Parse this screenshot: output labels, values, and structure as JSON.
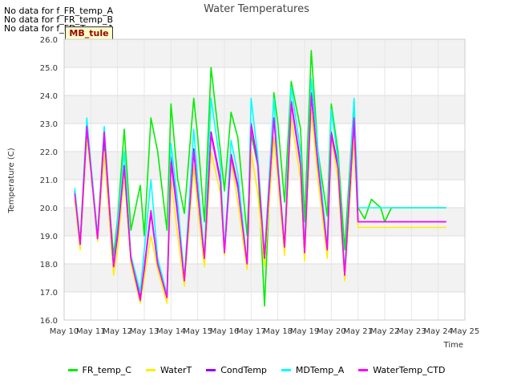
{
  "no_data_messages": [
    "No data for f_FR_temp_A",
    "No data for f_FR_temp_B",
    "No data for f_FD_Temp_1"
  ],
  "badge_label": "MB_tule",
  "chart_data": {
    "type": "line",
    "title": "Water Temperatures",
    "xlabel": "Time",
    "ylabel": "Temperature (C)",
    "ylim": [
      16.0,
      26.0
    ],
    "xlim": [
      "May 10",
      "May 25"
    ],
    "x_ticks": [
      "May 10",
      "May 11",
      "May 12",
      "May 13",
      "May 14",
      "May 15",
      "May 16",
      "May 17",
      "May 18",
      "May 19",
      "May 20",
      "May 21",
      "May 22",
      "May 23",
      "May 24",
      "May 25"
    ],
    "y_ticks": [
      "16.0",
      "17.0",
      "18.0",
      "19.0",
      "20.0",
      "21.0",
      "22.0",
      "23.0",
      "24.0",
      "25.0",
      "26.0"
    ],
    "grid": true,
    "legend_position": "bottom",
    "x_day_offsets": [
      0.4,
      0.6,
      0.85,
      1.0,
      1.25,
      1.5,
      1.85,
      2.0,
      2.25,
      2.5,
      2.85,
      3.0,
      3.25,
      3.5,
      3.85,
      4.0,
      4.25,
      4.5,
      4.85,
      5.0,
      5.25,
      5.5,
      5.85,
      6.0,
      6.25,
      6.5,
      6.85,
      7.0,
      7.25,
      7.5,
      7.85,
      8.0,
      8.25,
      8.5,
      8.85,
      9.0,
      9.25,
      9.5,
      9.85,
      10.0,
      10.25,
      10.5,
      10.85,
      11.0,
      11.25,
      11.5,
      11.85,
      12.0,
      12.25,
      12.5,
      12.85,
      13.0,
      13.25,
      13.5,
      13.85,
      14.0,
      14.3
    ],
    "series": [
      {
        "name": "FR_temp_C",
        "color": "#00ee00",
        "values": [
          20.6,
          18.8,
          22.8,
          21.5,
          19.0,
          22.3,
          18.3,
          19.6,
          22.8,
          19.2,
          20.8,
          19.0,
          23.2,
          22.0,
          19.2,
          23.7,
          21.0,
          19.8,
          23.9,
          22.5,
          19.5,
          25.0,
          22.0,
          20.6,
          23.4,
          22.5,
          19.0,
          22.6,
          21.5,
          16.5,
          24.1,
          23.0,
          20.2,
          24.5,
          22.8,
          19.5,
          25.6,
          22.0,
          19.7,
          23.7,
          22.0,
          18.5,
          23.8,
          20.0,
          19.6,
          20.3,
          20.0,
          19.5,
          20.0,
          20.0,
          20.0,
          20.0,
          20.0,
          20.0,
          20.0,
          20.0,
          20.0
        ]
      },
      {
        "name": "WaterT",
        "color": "#ffee00",
        "values": [
          20.3,
          18.5,
          22.5,
          21.3,
          18.8,
          22.0,
          17.6,
          18.5,
          21.2,
          18.0,
          16.6,
          17.5,
          19.0,
          17.8,
          16.6,
          21.0,
          19.0,
          17.2,
          21.5,
          20.0,
          17.9,
          22.0,
          20.5,
          18.3,
          21.7,
          20.2,
          17.8,
          22.0,
          20.5,
          17.9,
          22.5,
          21.0,
          18.3,
          23.2,
          21.0,
          18.1,
          23.5,
          21.0,
          18.2,
          22.5,
          21.0,
          17.4,
          22.5,
          19.3,
          19.3,
          19.3,
          19.3,
          19.3,
          19.3,
          19.3,
          19.3,
          19.3,
          19.3,
          19.3,
          19.3,
          19.3,
          19.3
        ]
      },
      {
        "name": "CondTemp",
        "color": "#9900ff",
        "values": [
          20.6,
          18.7,
          22.8,
          21.5,
          18.9,
          22.6,
          17.9,
          19.0,
          21.5,
          18.2,
          16.8,
          17.8,
          19.8,
          18.0,
          16.8,
          21.8,
          19.8,
          17.4,
          22.1,
          20.6,
          18.2,
          22.7,
          21.0,
          18.4,
          21.9,
          20.8,
          18.0,
          23.0,
          21.6,
          18.2,
          23.2,
          21.5,
          18.6,
          23.8,
          21.6,
          18.4,
          24.1,
          21.6,
          18.5,
          22.7,
          21.5,
          17.6,
          23.1,
          19.5,
          19.5,
          19.5,
          19.5,
          19.5,
          19.5,
          19.5,
          19.5,
          19.5,
          19.5,
          19.5,
          19.5,
          19.5,
          19.5
        ]
      },
      {
        "name": "MDTemp_A",
        "color": "#00ffff",
        "values": [
          20.7,
          18.8,
          23.2,
          21.6,
          19.0,
          22.9,
          17.9,
          19.5,
          22.0,
          18.3,
          17.0,
          18.5,
          21.0,
          18.2,
          16.9,
          22.3,
          20.2,
          17.5,
          22.8,
          21.0,
          18.3,
          23.9,
          21.5,
          18.5,
          22.4,
          21.2,
          18.0,
          23.9,
          21.8,
          18.3,
          23.9,
          21.6,
          18.7,
          24.3,
          22.0,
          18.5,
          24.6,
          22.0,
          18.6,
          23.5,
          21.7,
          17.7,
          23.9,
          20.0,
          20.0,
          20.0,
          20.0,
          20.0,
          20.0,
          20.0,
          20.0,
          20.0,
          20.0,
          20.0,
          20.0,
          20.0,
          20.0
        ]
      },
      {
        "name": "WaterTemp_CTD",
        "color": "#ff00ff",
        "values": [
          20.5,
          18.7,
          22.9,
          21.4,
          18.9,
          22.7,
          17.9,
          19.1,
          21.5,
          18.2,
          16.7,
          17.9,
          19.9,
          18.0,
          16.8,
          21.6,
          19.7,
          17.4,
          22.0,
          20.5,
          18.2,
          22.6,
          20.9,
          18.4,
          21.8,
          20.7,
          18.0,
          22.9,
          21.5,
          18.2,
          23.2,
          21.4,
          18.6,
          23.7,
          21.5,
          18.4,
          24.0,
          21.5,
          18.5,
          22.6,
          21.4,
          17.6,
          23.2,
          19.5,
          19.5,
          19.5,
          19.5,
          19.5,
          19.5,
          19.5,
          19.5,
          19.5,
          19.5,
          19.5,
          19.5,
          19.5,
          19.5
        ]
      }
    ]
  }
}
